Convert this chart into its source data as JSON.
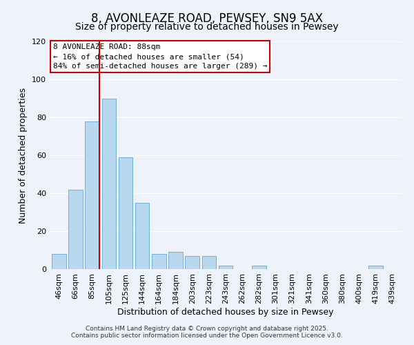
{
  "title": "8, AVONLEAZE ROAD, PEWSEY, SN9 5AX",
  "subtitle": "Size of property relative to detached houses in Pewsey",
  "xlabel": "Distribution of detached houses by size in Pewsey",
  "ylabel": "Number of detached properties",
  "bar_labels": [
    "46sqm",
    "66sqm",
    "85sqm",
    "105sqm",
    "125sqm",
    "144sqm",
    "164sqm",
    "184sqm",
    "203sqm",
    "223sqm",
    "243sqm",
    "262sqm",
    "282sqm",
    "301sqm",
    "321sqm",
    "341sqm",
    "360sqm",
    "380sqm",
    "400sqm",
    "419sqm",
    "439sqm"
  ],
  "bar_values": [
    8,
    42,
    78,
    90,
    59,
    35,
    8,
    9,
    7,
    7,
    2,
    0,
    2,
    0,
    0,
    0,
    0,
    0,
    0,
    2,
    0
  ],
  "bar_color": "#b8d8f0",
  "bar_edge_color": "#6eb0da",
  "vline_color": "#cc0000",
  "ylim": [
    0,
    120
  ],
  "yticks": [
    0,
    20,
    40,
    60,
    80,
    100,
    120
  ],
  "annotation_title": "8 AVONLEAZE ROAD: 88sqm",
  "annotation_line1": "← 16% of detached houses are smaller (54)",
  "annotation_line2": "84% of semi-detached houses are larger (289) →",
  "annotation_box_color": "#ffffff",
  "annotation_box_edge": "#cc0000",
  "footer1": "Contains HM Land Registry data © Crown copyright and database right 2025.",
  "footer2": "Contains public sector information licensed under the Open Government Licence v3.0.",
  "background_color": "#eef2fa",
  "grid_color": "#ffffff",
  "title_fontsize": 12,
  "subtitle_fontsize": 10,
  "axis_label_fontsize": 9,
  "tick_fontsize": 8,
  "footer_fontsize": 6.5,
  "annotation_fontsize": 8
}
